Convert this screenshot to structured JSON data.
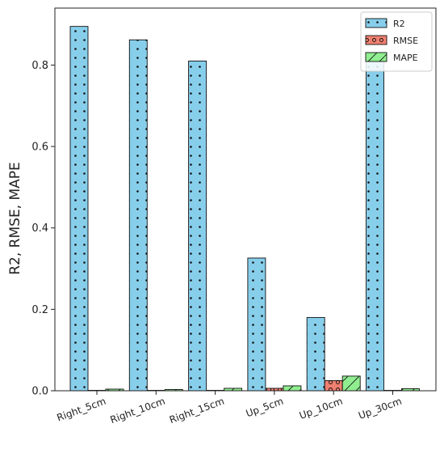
{
  "chart_data": {
    "type": "bar",
    "categories": [
      "Right_5cm",
      "Right_10cm",
      "Right_15cm",
      "Up_5cm",
      "Up_10cm",
      "Up_30cm"
    ],
    "series": [
      {
        "name": "R2",
        "values": [
          0.895,
          0.862,
          0.81,
          0.326,
          0.18,
          0.81
        ],
        "color": "#87ceeb",
        "hatch": "dots"
      },
      {
        "name": "RMSE",
        "values": [
          0.001,
          0.001,
          0.001,
          0.006,
          0.025,
          0.001
        ],
        "color": "#f08070",
        "hatch": "circles"
      },
      {
        "name": "MAPE",
        "values": [
          0.004,
          0.003,
          0.006,
          0.012,
          0.036,
          0.005
        ],
        "color": "#90ee90",
        "hatch": "diagonal"
      }
    ],
    "ylabel": "R2, RMSE, MAPE",
    "xlabel": "",
    "title": "",
    "ylim": [
      0,
      0.94
    ],
    "yticks": [
      0.0,
      0.2,
      0.4,
      0.6,
      0.8
    ],
    "ytick_labels": [
      "0.0",
      "0.2",
      "0.4",
      "0.6",
      "0.8"
    ],
    "grid": false,
    "legend_position": "top-right"
  }
}
